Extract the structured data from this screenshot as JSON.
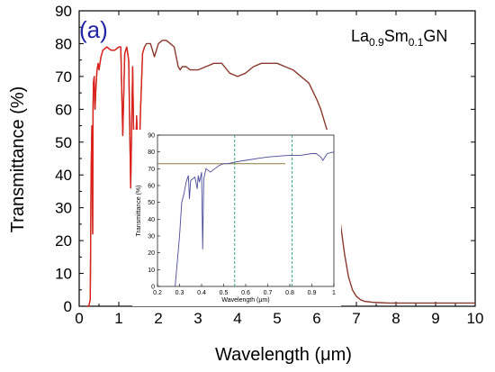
{
  "colors": {
    "main_trace": "#8b3a2e",
    "spike_trace": "#e0201a",
    "inset_trace": "#4b4b9a",
    "inset_ref_line": "#8a7a3a",
    "inset_markers": "#2e9e6a",
    "panel_label": "#2323a6"
  },
  "annotations": {
    "panel_label": "(a)",
    "formula_base1": "La",
    "formula_sub1": "0.9",
    "formula_base2": "Sm",
    "formula_sub2": "0.1",
    "formula_base3": "GN"
  },
  "chart_data": [
    {
      "type": "line",
      "title": "",
      "xlabel": "Wavelength (μm)",
      "ylabel": "Transmittance (%)",
      "xlim": [
        0,
        10
      ],
      "ylim": [
        0,
        90
      ],
      "xticks": [
        0,
        1,
        2,
        3,
        4,
        5,
        6,
        7,
        8,
        9,
        10
      ],
      "yticks": [
        0,
        10,
        20,
        30,
        40,
        50,
        60,
        70,
        80,
        90
      ],
      "grid": false,
      "series": [
        {
          "x": [
            0.2,
            0.24,
            0.28,
            0.3,
            0.32,
            0.34,
            0.35,
            0.36,
            0.38,
            0.4,
            0.42,
            0.45,
            0.48,
            0.5,
            0.55,
            0.6,
            0.7,
            0.8,
            0.9,
            1.0,
            1.05,
            1.1,
            1.15,
            1.2,
            1.25,
            1.3,
            1.35,
            1.4,
            1.45,
            1.5,
            1.55,
            1.6,
            1.65,
            1.7,
            1.8,
            1.9,
            2.0,
            2.1,
            2.2,
            2.3,
            2.4,
            2.5,
            2.55,
            2.6,
            2.7,
            2.8,
            3.0,
            3.2,
            3.4,
            3.6,
            3.8,
            4.0,
            4.2,
            4.4,
            4.6,
            4.8,
            5.0,
            5.2,
            5.4,
            5.6,
            5.8,
            6.0,
            6.1,
            6.2,
            6.3,
            6.4,
            6.5,
            6.6,
            6.7,
            6.8,
            6.9,
            7.0,
            7.1,
            7.2,
            7.4,
            7.6,
            7.8,
            8.0,
            8.5,
            9.0,
            9.5,
            10.0
          ],
          "y": [
            0,
            0,
            2,
            40,
            55,
            22,
            60,
            68,
            70,
            60,
            66,
            72,
            74,
            72,
            76,
            78,
            79,
            78,
            78,
            79,
            79,
            52,
            77,
            79,
            75,
            36,
            73,
            33,
            58,
            40,
            60,
            77,
            79,
            80,
            80,
            76,
            80,
            81,
            81,
            80,
            79,
            73,
            72,
            73,
            73,
            72,
            72,
            73,
            74,
            74,
            71,
            70,
            71,
            73,
            74,
            74,
            74,
            73,
            72,
            70,
            68,
            63,
            60,
            56,
            52,
            46,
            36,
            25,
            16,
            9,
            5,
            3,
            2,
            1.5,
            1.2,
            1.1,
            1.0,
            1.0,
            1.0,
            1.0,
            1.0,
            1.0
          ]
        }
      ]
    },
    {
      "type": "line",
      "title": "",
      "xlabel": "Wavelength (μm)",
      "ylabel": "Transmittance (%)",
      "xlim": [
        0.2,
        1.0
      ],
      "ylim": [
        0,
        90
      ],
      "xticks": [
        0.2,
        0.3,
        0.4,
        0.5,
        0.6,
        0.7,
        0.8,
        0.9,
        1.0
      ],
      "yticks": [
        0,
        10,
        20,
        30,
        40,
        50,
        60,
        70,
        80,
        90
      ],
      "grid": false,
      "reference_y": 73,
      "vertical_markers_x": [
        0.55,
        0.81
      ],
      "series": [
        {
          "x": [
            0.28,
            0.3,
            0.31,
            0.32,
            0.33,
            0.34,
            0.345,
            0.35,
            0.36,
            0.37,
            0.38,
            0.385,
            0.39,
            0.4,
            0.405,
            0.41,
            0.42,
            0.44,
            0.46,
            0.48,
            0.5,
            0.52,
            0.55,
            0.6,
            0.65,
            0.7,
            0.75,
            0.8,
            0.85,
            0.9,
            0.92,
            0.94,
            0.95,
            0.97,
            1.0
          ],
          "y": [
            0,
            30,
            50,
            55,
            62,
            66,
            52,
            63,
            64,
            65,
            58,
            66,
            62,
            68,
            22,
            64,
            70,
            68,
            70,
            72,
            73,
            73,
            74,
            75,
            76,
            77,
            77.5,
            78,
            78,
            79,
            79,
            77,
            75,
            79,
            80
          ]
        }
      ]
    }
  ]
}
